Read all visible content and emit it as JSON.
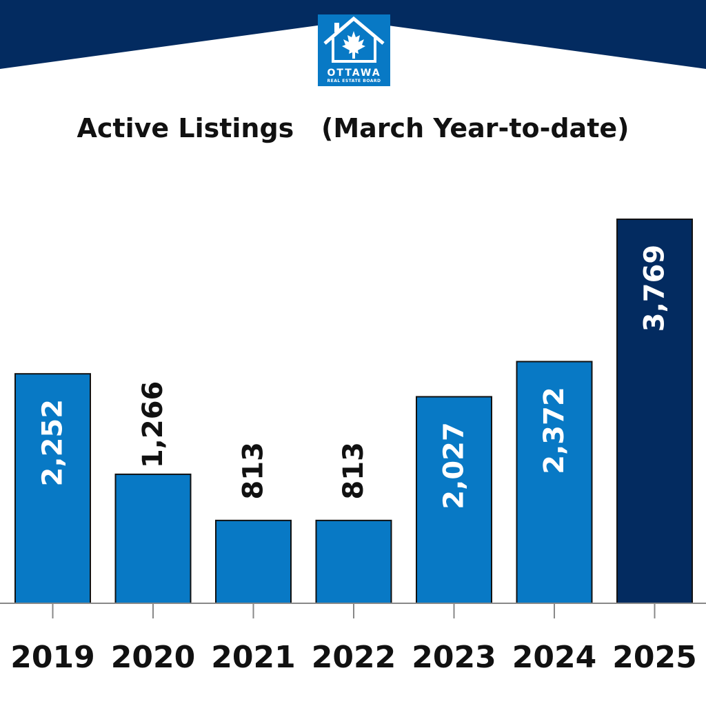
{
  "logo": {
    "city": "OTTAWA",
    "org": "REAL ESTATE BOARD"
  },
  "colors": {
    "banner": "#032b60",
    "bar": "#0879c5",
    "bar_highlight": "#032b60",
    "text": "#111111"
  },
  "chart_data": {
    "type": "bar",
    "title": "Active Listings   (March Year-to-date)",
    "categories": [
      "2019",
      "2020",
      "2021",
      "2022",
      "2023",
      "2024",
      "2025"
    ],
    "values": [
      2252,
      1266,
      813,
      813,
      2027,
      2372,
      3769
    ],
    "labels": [
      "2,252",
      "1,266",
      "813",
      "813",
      "2,027",
      "2,372",
      "3,769"
    ],
    "highlight_index": 6,
    "ylim": [
      0,
      3769
    ],
    "grid": false,
    "legend": "none"
  }
}
